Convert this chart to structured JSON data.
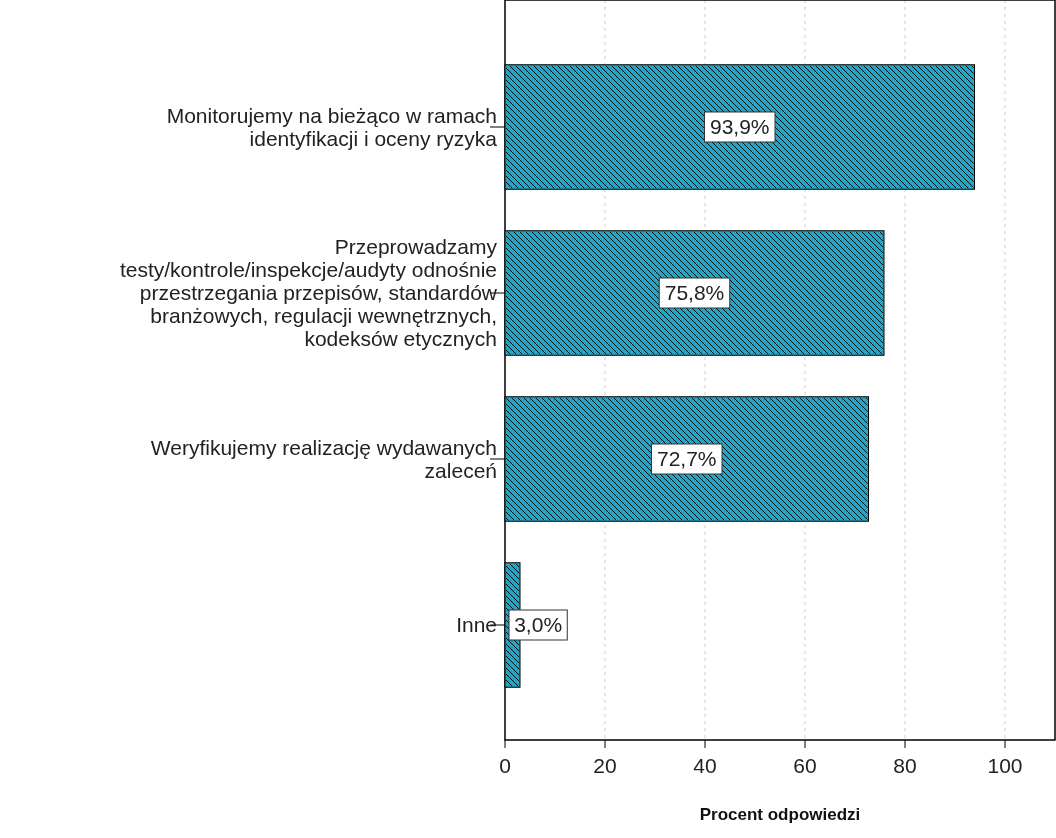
{
  "chart_data": {
    "type": "bar",
    "orientation": "horizontal",
    "xlabel": "Procent odpowiedzi",
    "categories": [
      "Monitorujemy na bieżąco w ramach identyfikacji i oceny ryzyka",
      "Przeprowadzamy testy/kontrole/inspekcje/audyty odnośnie przestrzegania przepisów, standardów branżowych, regulacji wewnętrznych, kodeksów etycznych",
      "Weryfikujemy realizację wydawanych zaleceń",
      "Inne"
    ],
    "values": [
      93.9,
      75.8,
      72.7,
      3.0
    ],
    "value_labels": [
      "93,9%",
      "75,8%",
      "72,7%",
      "3,0%"
    ],
    "color": "#22a6c8",
    "xlim": [
      0,
      110
    ],
    "xticks": [
      0,
      20,
      40,
      60,
      80,
      100
    ],
    "grid": "x"
  }
}
